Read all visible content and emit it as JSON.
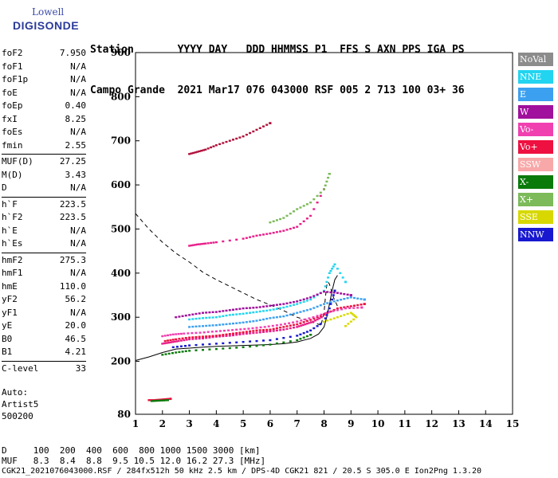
{
  "logo": {
    "line1": "Lowell",
    "line2": "DIGISONDE"
  },
  "header": {
    "row1": "Station       YYYY DAY   DDD HHMMSS P1  FFS S AXN PPS IGA PS",
    "row2": "Campo Grande  2021 Mar17 076 043000 RSF 005 2 713 100 03+ 36"
  },
  "params": [
    {
      "group": [
        {
          "k": "foF2",
          "v": "7.950"
        },
        {
          "k": "foF1",
          "v": "N/A"
        },
        {
          "k": "foF1p",
          "v": "N/A"
        },
        {
          "k": "foE",
          "v": "N/A"
        },
        {
          "k": "foEp",
          "v": "0.40"
        },
        {
          "k": "fxI",
          "v": "8.25"
        },
        {
          "k": "foEs",
          "v": "N/A"
        },
        {
          "k": "fmin",
          "v": "2.55"
        }
      ]
    },
    {
      "group": [
        {
          "k": "MUF(D)",
          "v": "27.25"
        },
        {
          "k": "M(D)",
          "v": "3.43"
        },
        {
          "k": "D",
          "v": "N/A"
        }
      ]
    },
    {
      "group": [
        {
          "k": "h`F",
          "v": "223.5"
        },
        {
          "k": "h`F2",
          "v": "223.5"
        },
        {
          "k": "h`E",
          "v": "N/A"
        },
        {
          "k": "h`Es",
          "v": "N/A"
        }
      ]
    },
    {
      "group": [
        {
          "k": "hmF2",
          "v": "275.3"
        },
        {
          "k": "hmF1",
          "v": "N/A"
        },
        {
          "k": "hmE",
          "v": "110.0"
        },
        {
          "k": "yF2",
          "v": "56.2"
        },
        {
          "k": "yF1",
          "v": "N/A"
        },
        {
          "k": "yE",
          "v": "20.0"
        },
        {
          "k": "B0",
          "v": "46.5"
        },
        {
          "k": "B1",
          "v": "4.21"
        }
      ]
    },
    {
      "group": [
        {
          "k": "C-level",
          "v": "33"
        }
      ]
    }
  ],
  "auto": {
    "l1": "Auto:",
    "l2": "Artist5",
    "l3": "500200"
  },
  "legend": [
    {
      "label": "NoVal",
      "color": "#8c8c8c"
    },
    {
      "label": "NNE",
      "color": "#22d4f0"
    },
    {
      "label": "E",
      "color": "#3ca0f0"
    },
    {
      "label": "W",
      "color": "#a0109c"
    },
    {
      "label": "Vo-",
      "color": "#f040b0"
    },
    {
      "label": "Vo+",
      "color": "#ee1040"
    },
    {
      "label": "SSW",
      "color": "#f8a8a8"
    },
    {
      "label": "X-",
      "color": "#0a7a0a"
    },
    {
      "label": "X+",
      "color": "#7cba5a"
    },
    {
      "label": "SSE",
      "color": "#d8d800"
    },
    {
      "label": "NNW",
      "color": "#1818d0"
    }
  ],
  "bottom": {
    "dline": "D     100  200  400  600  800 1000 1500 3000 [km]",
    "mline": "MUF   8.3  8.4  8.8  9.5 10.5 12.0 16.2 27.3 [MHz]",
    "info": "CGK21_2021076043000.RSF / 284fx512h 50 kHz 2.5 km / DPS-4D CGK21 821 / 20.5 S 305.0 E Ion2Png 1.3.20"
  },
  "chart_data": {
    "type": "scatter",
    "xlim": [
      1,
      15
    ],
    "ylim": [
      80,
      900
    ],
    "xticks": [
      "1",
      "2",
      "3",
      "4",
      "5",
      "6",
      "7",
      "8",
      "9",
      "10",
      "11",
      "12",
      "13",
      "14",
      "15"
    ],
    "yticks": [
      {
        "v": 900,
        "label": "900"
      },
      {
        "v": 800,
        "label": "800"
      },
      {
        "v": 700,
        "label": "700"
      },
      {
        "v": 600,
        "label": "600"
      },
      {
        "v": 500,
        "label": "500"
      },
      {
        "v": 400,
        "label": "400"
      },
      {
        "v": 300,
        "label": "300"
      },
      {
        "v": 200,
        "label": "200"
      },
      {
        "v": 80,
        "label": "80"
      }
    ],
    "grid": false,
    "traces": [
      {
        "color": "#e8208a",
        "points": [
          [
            2.0,
            240
          ],
          [
            2.3,
            243
          ],
          [
            2.6,
            246
          ],
          [
            3.0,
            250
          ],
          [
            3.5,
            252
          ],
          [
            4.0,
            256
          ],
          [
            4.5,
            258
          ],
          [
            5.0,
            262
          ],
          [
            5.5,
            265
          ],
          [
            6.0,
            268
          ],
          [
            6.5,
            272
          ],
          [
            7.0,
            278
          ],
          [
            7.3,
            284
          ],
          [
            7.6,
            290
          ],
          [
            7.9,
            300
          ]
        ]
      },
      {
        "color": "#ee1040",
        "points": [
          [
            2.1,
            246
          ],
          [
            2.5,
            250
          ],
          [
            3.0,
            254
          ],
          [
            3.5,
            256
          ],
          [
            4.0,
            258
          ],
          [
            4.5,
            262
          ],
          [
            5.0,
            266
          ],
          [
            5.5,
            270
          ],
          [
            6.0,
            272
          ],
          [
            6.5,
            278
          ],
          [
            7.0,
            284
          ],
          [
            7.5,
            294
          ],
          [
            8.0,
            306
          ],
          [
            8.5,
            320
          ],
          [
            9.0,
            325
          ],
          [
            9.5,
            330
          ]
        ]
      },
      {
        "color": "#3ca0f0",
        "points": [
          [
            3.0,
            278
          ],
          [
            3.5,
            280
          ],
          [
            4.0,
            282
          ],
          [
            4.5,
            285
          ],
          [
            5.0,
            288
          ],
          [
            5.5,
            292
          ],
          [
            6.0,
            298
          ],
          [
            6.5,
            302
          ],
          [
            7.0,
            310
          ],
          [
            7.5,
            318
          ],
          [
            8.0,
            330
          ],
          [
            8.5,
            338
          ],
          [
            9.0,
            345
          ],
          [
            9.5,
            340
          ]
        ]
      },
      {
        "color": "#22d4f0",
        "points": [
          [
            3.0,
            295
          ],
          [
            3.5,
            298
          ],
          [
            4.0,
            300
          ],
          [
            4.5,
            305
          ],
          [
            5.0,
            308
          ],
          [
            5.5,
            312
          ],
          [
            6.0,
            316
          ],
          [
            6.5,
            322
          ],
          [
            7.0,
            330
          ],
          [
            7.5,
            340
          ],
          [
            8.0,
            360
          ],
          [
            8.2,
            400
          ],
          [
            8.4,
            420
          ],
          [
            8.8,
            380
          ]
        ]
      },
      {
        "color": "#a0109c",
        "points": [
          [
            2.5,
            300
          ],
          [
            3.0,
            305
          ],
          [
            3.5,
            310
          ],
          [
            4.0,
            312
          ],
          [
            4.5,
            316
          ],
          [
            5.0,
            320
          ],
          [
            5.5,
            322
          ],
          [
            6.0,
            326
          ],
          [
            6.5,
            330
          ],
          [
            7.0,
            336
          ],
          [
            7.5,
            345
          ],
          [
            8.0,
            358
          ],
          [
            8.5,
            355
          ],
          [
            9.0,
            350
          ]
        ]
      },
      {
        "color": "#1818d0",
        "points": [
          [
            2.4,
            232
          ],
          [
            3.0,
            236
          ],
          [
            4.0,
            240
          ],
          [
            5.0,
            244
          ],
          [
            6.0,
            248
          ],
          [
            7.0,
            258
          ],
          [
            7.5,
            270
          ],
          [
            8.0,
            290
          ],
          [
            8.2,
            320
          ],
          [
            8.4,
            360
          ]
        ]
      },
      {
        "color": "#0a7a0a",
        "points": [
          [
            2.0,
            215
          ],
          [
            2.5,
            220
          ],
          [
            3.0,
            224
          ],
          [
            4.0,
            228
          ],
          [
            5.0,
            232
          ],
          [
            6.0,
            238
          ],
          [
            7.0,
            248
          ],
          [
            7.5,
            260
          ]
        ]
      },
      {
        "color": "#d8d800",
        "points": [
          [
            8.0,
            290
          ],
          [
            8.5,
            300
          ],
          [
            9.0,
            310
          ],
          [
            9.2,
            300
          ],
          [
            8.8,
            280
          ]
        ]
      },
      {
        "color": "#f040b0",
        "points": [
          [
            2.0,
            257
          ],
          [
            2.4,
            261
          ],
          [
            2.8,
            263
          ],
          [
            3.4,
            265
          ],
          [
            4.0,
            268
          ],
          [
            4.6,
            271
          ],
          [
            5.2,
            274
          ],
          [
            5.8,
            278
          ],
          [
            6.4,
            283
          ],
          [
            7.0,
            290
          ],
          [
            7.6,
            300
          ],
          [
            8.2,
            312
          ],
          [
            8.8,
            320
          ],
          [
            9.4,
            322
          ]
        ]
      },
      {
        "color": "#e8208a",
        "points": [
          [
            3.0,
            462
          ],
          [
            3.3,
            465
          ],
          [
            3.6,
            467
          ],
          [
            4.0,
            470
          ],
          [
            5.0,
            478
          ],
          [
            5.5,
            485
          ],
          [
            6.0,
            490
          ],
          [
            6.5,
            496
          ],
          [
            7.0,
            505
          ],
          [
            7.5,
            530
          ],
          [
            8.0,
            590
          ]
        ]
      },
      {
        "color": "#b0103a",
        "points": [
          [
            3.0,
            670
          ],
          [
            3.3,
            675
          ],
          [
            3.6,
            680
          ],
          [
            4.0,
            690
          ],
          [
            4.5,
            700
          ],
          [
            5.0,
            710
          ],
          [
            5.5,
            725
          ],
          [
            6.0,
            740
          ]
        ]
      },
      {
        "color": "#7cba5a",
        "points": [
          [
            6.0,
            515
          ],
          [
            6.5,
            525
          ],
          [
            7.0,
            545
          ],
          [
            7.5,
            560
          ],
          [
            8.0,
            590
          ],
          [
            8.2,
            625
          ]
        ]
      },
      {
        "color": "#ee1040",
        "points": [
          [
            1.5,
            112
          ],
          [
            1.7,
            112
          ],
          [
            1.9,
            113
          ],
          [
            2.1,
            114
          ],
          [
            2.3,
            115
          ]
        ]
      },
      {
        "color": "#0a7a0a",
        "points": [
          [
            1.6,
            110
          ],
          [
            1.9,
            111
          ],
          [
            2.2,
            112
          ]
        ]
      }
    ],
    "fits": [
      {
        "style": "dashed",
        "points": [
          [
            1.0,
            535
          ],
          [
            1.5,
            500
          ],
          [
            2.0,
            470
          ],
          [
            2.5,
            445
          ],
          [
            3.0,
            425
          ],
          [
            3.5,
            402
          ],
          [
            4.0,
            385
          ],
          [
            4.5,
            370
          ],
          [
            5.0,
            355
          ],
          [
            5.5,
            340
          ],
          [
            6.0,
            328
          ],
          [
            6.5,
            315
          ],
          [
            7.0,
            300
          ],
          [
            7.5,
            290
          ],
          [
            7.9,
            282
          ]
        ]
      },
      {
        "style": "dashed",
        "points": [
          [
            7.9,
            285
          ],
          [
            8.0,
            310
          ],
          [
            8.05,
            345
          ],
          [
            8.1,
            372
          ],
          [
            8.15,
            380
          ],
          [
            8.2,
            375
          ],
          [
            8.35,
            345
          ],
          [
            8.5,
            325
          ]
        ]
      },
      {
        "style": "solid",
        "points": [
          [
            1.0,
            202
          ],
          [
            1.5,
            210
          ],
          [
            2.0,
            220
          ],
          [
            2.5,
            228
          ],
          [
            3.0,
            230
          ],
          [
            3.5,
            232
          ],
          [
            4.0,
            234
          ],
          [
            5.0,
            236
          ],
          [
            6.0,
            238
          ],
          [
            6.5,
            240
          ],
          [
            7.0,
            244
          ],
          [
            7.5,
            252
          ],
          [
            7.8,
            262
          ],
          [
            8.0,
            278
          ],
          [
            8.1,
            300
          ],
          [
            8.2,
            330
          ],
          [
            8.3,
            360
          ],
          [
            8.4,
            385
          ],
          [
            8.5,
            395
          ]
        ]
      }
    ]
  }
}
